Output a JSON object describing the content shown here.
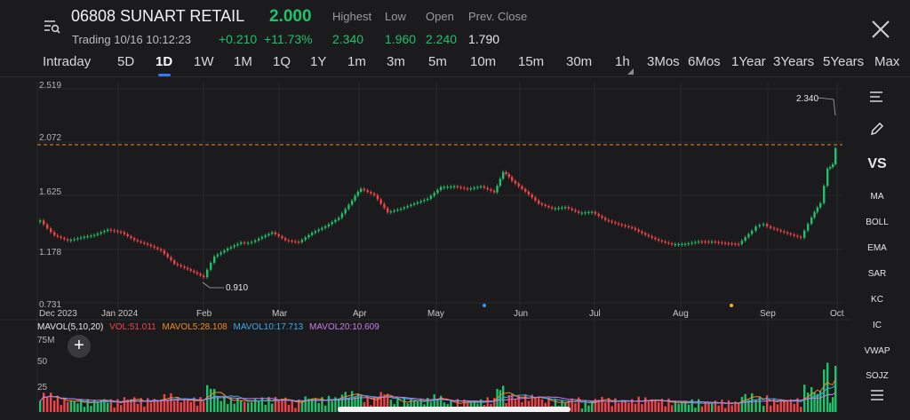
{
  "header": {
    "ticker": "06808 SUNART RETAIL",
    "price": "2.000",
    "trading_status": "Trading 10/16 10:12:23",
    "change": "+0.210",
    "change_pct": "+11.73%",
    "stats": [
      {
        "label": "Highest",
        "value": "2.340",
        "color": "#1fc16a"
      },
      {
        "label": "Low",
        "value": "1.960",
        "color": "#1fc16a"
      },
      {
        "label": "Open",
        "value": "2.240",
        "color": "#1fc16a"
      },
      {
        "label": "Prev. Close",
        "value": "1.790",
        "color": "#e8e8e8"
      }
    ]
  },
  "tabs": [
    "Intraday",
    "5D",
    "1D",
    "1W",
    "1M",
    "1Q",
    "1Y",
    "1m",
    "3m",
    "5m",
    "10m",
    "15m",
    "30m",
    "1h",
    "3Mos",
    "6Mos",
    "1Year",
    "3Years",
    "5Years",
    "Max"
  ],
  "active_tab": "1D",
  "chart": {
    "y_ticks": [
      "2.519",
      "2.072",
      "1.625",
      "1.178",
      "0.731"
    ],
    "x_ticks": [
      "Dec 2023",
      "Jan 2024",
      "Feb",
      "Mar",
      "Apr",
      "May",
      "Jun",
      "Jul",
      "Aug",
      "Sep",
      "Oct"
    ],
    "high_marker": "2.340",
    "low_marker": "0.910",
    "up_color": "#1fc16a",
    "down_color": "#f0444a",
    "ref_line_color": "#f08a24"
  },
  "side_menu": [
    "MA",
    "BOLL",
    "EMA",
    "SAR",
    "KC",
    "IC",
    "VWAP",
    "SOJZ"
  ],
  "side_vs": "VS",
  "volume": {
    "label": "MAVOL(5,10,20)",
    "vol": "VOL:51.011",
    "ma5": "MAVOL5:28.108",
    "ma10": "MAVOL10:17.713",
    "ma20": "MAVOL20:10.609",
    "y_ticks": [
      "75M",
      "50",
      "25"
    ],
    "colors": {
      "vol": "#f0444a",
      "ma5": "#f08a24",
      "ma10": "#3aa8e8",
      "ma20": "#c77ce8"
    }
  },
  "icons": [
    "list-search-icon",
    "close-icon",
    "lines-icon",
    "pencil-icon",
    "plus-icon",
    "settings-lines-icon"
  ]
}
